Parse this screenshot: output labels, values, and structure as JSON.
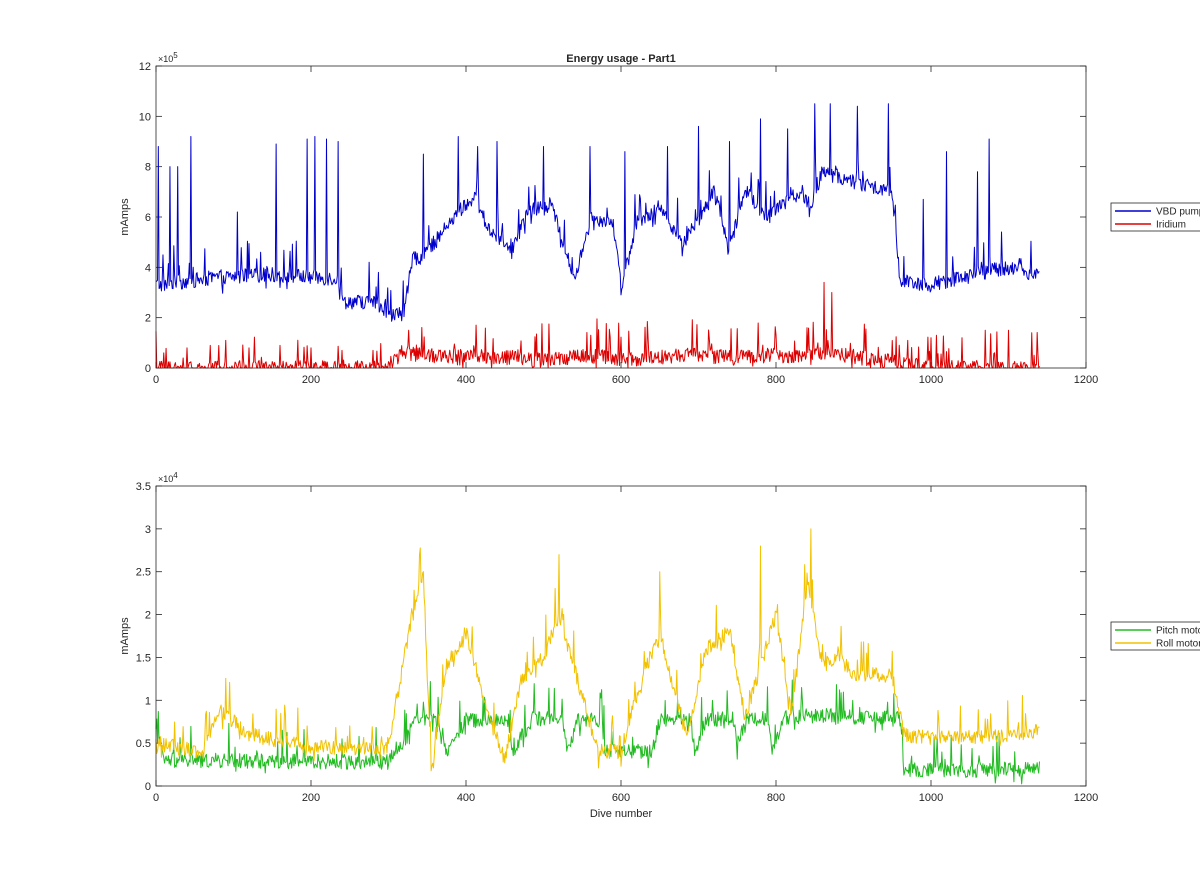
{
  "chart_data": [
    {
      "type": "line",
      "title": "Energy usage - Part1",
      "xlabel": "",
      "ylabel": "mAmps",
      "xlim": [
        0,
        1200
      ],
      "ylim": [
        0,
        1200000
      ],
      "xticks": [
        0,
        200,
        400,
        600,
        800,
        1000,
        1200
      ],
      "yticks": [
        0,
        2,
        4,
        6,
        8,
        10,
        12
      ],
      "y_exponent": "5",
      "x_range_data": [
        0,
        1140
      ],
      "legend_position": "outside-right",
      "series": [
        {
          "name": "VBD pump",
          "color": "#0000cc",
          "baseline": [
            [
              0,
              330000
            ],
            [
              80,
              360000
            ],
            [
              150,
              370000
            ],
            [
              235,
              355000
            ],
            [
              240,
              265000
            ],
            [
              285,
              260000
            ],
            [
              295,
              200000
            ],
            [
              320,
              220000
            ],
            [
              330,
              420000
            ],
            [
              360,
              500000
            ],
            [
              390,
              620000
            ],
            [
              410,
              680000
            ],
            [
              430,
              550000
            ],
            [
              460,
              480000
            ],
            [
              480,
              620000
            ],
            [
              510,
              650000
            ],
            [
              540,
              350000
            ],
            [
              560,
              600000
            ],
            [
              590,
              580000
            ],
            [
              600,
              320000
            ],
            [
              620,
              580000
            ],
            [
              650,
              640000
            ],
            [
              680,
              500000
            ],
            [
              700,
              580000
            ],
            [
              720,
              700000
            ],
            [
              740,
              480000
            ],
            [
              760,
              700000
            ],
            [
              790,
              600000
            ],
            [
              820,
              700000
            ],
            [
              845,
              650000
            ],
            [
              860,
              780000
            ],
            [
              900,
              740000
            ],
            [
              950,
              700000
            ],
            [
              960,
              350000
            ],
            [
              1000,
              330000
            ],
            [
              1050,
              370000
            ],
            [
              1100,
              400000
            ],
            [
              1140,
              370000
            ]
          ],
          "spikes": [
            [
              3,
              880000
            ],
            [
              18,
              800000
            ],
            [
              28,
              800000
            ],
            [
              45,
              920000
            ],
            [
              105,
              620000
            ],
            [
              135,
              460000
            ],
            [
              155,
              890000
            ],
            [
              195,
              910000
            ],
            [
              205,
              920000
            ],
            [
              220,
              910000
            ],
            [
              235,
              900000
            ],
            [
              275,
              420000
            ],
            [
              287,
              380000
            ],
            [
              345,
              850000
            ],
            [
              390,
              920000
            ],
            [
              415,
              880000
            ],
            [
              440,
              900000
            ],
            [
              500,
              880000
            ],
            [
              560,
              880000
            ],
            [
              605,
              860000
            ],
            [
              660,
              880000
            ],
            [
              700,
              960000
            ],
            [
              740,
              900000
            ],
            [
              780,
              990000
            ],
            [
              815,
              950000
            ],
            [
              850,
              1050000
            ],
            [
              870,
              1050000
            ],
            [
              905,
              1040000
            ],
            [
              945,
              1050000
            ],
            [
              990,
              670000
            ],
            [
              1020,
              860000
            ],
            [
              1060,
              780000
            ],
            [
              1075,
              910000
            ]
          ]
        },
        {
          "name": "Iridium",
          "color": "#dd0000",
          "baseline": [
            [
              0,
              0
            ],
            [
              300,
              0
            ],
            [
              320,
              60000
            ],
            [
              360,
              50000
            ],
            [
              460,
              40000
            ],
            [
              500,
              30000
            ],
            [
              560,
              50000
            ],
            [
              620,
              30000
            ],
            [
              660,
              45000
            ],
            [
              700,
              55000
            ],
            [
              740,
              40000
            ],
            [
              790,
              50000
            ],
            [
              840,
              40000
            ],
            [
              860,
              60000
            ],
            [
              900,
              45000
            ],
            [
              960,
              20000
            ],
            [
              1000,
              0
            ],
            [
              1140,
              0
            ]
          ],
          "spikes": [
            [
              10,
              60000
            ],
            [
              40,
              80000
            ],
            [
              70,
              90000
            ],
            [
              90,
              110000
            ],
            [
              120,
              80000
            ],
            [
              160,
              90000
            ],
            [
              200,
              80000
            ],
            [
              240,
              70000
            ],
            [
              280,
              70000
            ],
            [
              840,
              160000
            ],
            [
              862,
              340000
            ],
            [
              872,
              300000
            ],
            [
              970,
              110000
            ],
            [
              1000,
              120000
            ],
            [
              1040,
              120000
            ],
            [
              1070,
              150000
            ],
            [
              1100,
              150000
            ],
            [
              1130,
              140000
            ]
          ]
        }
      ]
    },
    {
      "type": "line",
      "title": "",
      "xlabel": "Dive number",
      "ylabel": "mAmps",
      "xlim": [
        0,
        1200
      ],
      "ylim": [
        0,
        35000
      ],
      "xticks": [
        0,
        200,
        400,
        600,
        800,
        1000,
        1200
      ],
      "yticks": [
        0,
        0.5,
        1,
        1.5,
        2,
        2.5,
        3,
        3.5
      ],
      "y_exponent": "4",
      "x_range_data": [
        0,
        1140
      ],
      "legend_position": "outside-right",
      "series": [
        {
          "name": "Pitch motor",
          "color": "#22bb22",
          "baseline": [
            [
              0,
              7500
            ],
            [
              10,
              3000
            ],
            [
              300,
              2800
            ],
            [
              305,
              4000
            ],
            [
              320,
              5000
            ],
            [
              335,
              8000
            ],
            [
              360,
              7800
            ],
            [
              375,
              4000
            ],
            [
              400,
              7600
            ],
            [
              455,
              7600
            ],
            [
              460,
              4000
            ],
            [
              485,
              7800
            ],
            [
              525,
              7800
            ],
            [
              530,
              4000
            ],
            [
              545,
              7700
            ],
            [
              575,
              7700
            ],
            [
              580,
              4000
            ],
            [
              640,
              4000
            ],
            [
              650,
              7800
            ],
            [
              690,
              7800
            ],
            [
              695,
              4000
            ],
            [
              710,
              7800
            ],
            [
              745,
              7800
            ],
            [
              750,
              4000
            ],
            [
              760,
              7900
            ],
            [
              790,
              7900
            ],
            [
              795,
              4000
            ],
            [
              810,
              8000
            ],
            [
              860,
              8300
            ],
            [
              900,
              8000
            ],
            [
              960,
              7800
            ],
            [
              965,
              2000
            ],
            [
              1000,
              1800
            ],
            [
              1140,
              2000
            ]
          ]
        },
        {
          "name": "Roll motor",
          "color": "#f2c200",
          "baseline": [
            [
              0,
              5000
            ],
            [
              60,
              4000
            ],
            [
              80,
              9000
            ],
            [
              120,
              6000
            ],
            [
              200,
              4500
            ],
            [
              300,
              4500
            ],
            [
              330,
              20000
            ],
            [
              345,
              25000
            ],
            [
              355,
              1500
            ],
            [
              375,
              14000
            ],
            [
              400,
              18000
            ],
            [
              430,
              8000
            ],
            [
              450,
              3000
            ],
            [
              470,
              12000
            ],
            [
              500,
              15000
            ],
            [
              520,
              20000
            ],
            [
              545,
              12000
            ],
            [
              570,
              4000
            ],
            [
              600,
              4000
            ],
            [
              625,
              12000
            ],
            [
              650,
              18000
            ],
            [
              665,
              12000
            ],
            [
              685,
              6000
            ],
            [
              710,
              16000
            ],
            [
              740,
              18000
            ],
            [
              760,
              8000
            ],
            [
              780,
              14000
            ],
            [
              800,
              20000
            ],
            [
              820,
              8000
            ],
            [
              840,
              24000
            ],
            [
              860,
              14000
            ],
            [
              880,
              15000
            ],
            [
              900,
              13000
            ],
            [
              950,
              13000
            ],
            [
              965,
              6000
            ],
            [
              1000,
              5500
            ],
            [
              1100,
              6000
            ],
            [
              1140,
              6500
            ]
          ],
          "spikes": [
            [
              340,
              27000
            ],
            [
              520,
              27000
            ],
            [
              650,
              25000
            ],
            [
              780,
              28000
            ],
            [
              845,
              30000
            ]
          ]
        }
      ]
    }
  ]
}
